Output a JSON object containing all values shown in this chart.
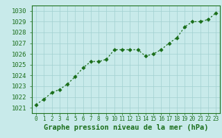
{
  "x": [
    0,
    1,
    2,
    3,
    4,
    5,
    6,
    7,
    8,
    9,
    10,
    11,
    12,
    13,
    14,
    15,
    16,
    17,
    18,
    19,
    20,
    21,
    22,
    23
  ],
  "y": [
    1021.3,
    1021.8,
    1022.4,
    1022.7,
    1023.2,
    1023.9,
    1024.7,
    1025.3,
    1025.3,
    1025.5,
    1026.4,
    1026.4,
    1026.4,
    1026.4,
    1025.8,
    1026.0,
    1026.4,
    1027.0,
    1027.5,
    1028.5,
    1029.0,
    1029.0,
    1029.2,
    1029.8
  ],
  "line_color": "#1a6e1a",
  "marker_color": "#1a6e1a",
  "bg_color": "#c8eaea",
  "grid_color": "#a0d0d0",
  "xlabel": "Graphe pression niveau de la mer (hPa)",
  "ytick_values": [
    1021,
    1022,
    1023,
    1024,
    1025,
    1026,
    1027,
    1028,
    1029,
    1030
  ],
  "xtick_labels": [
    "0",
    "1",
    "2",
    "3",
    "4",
    "5",
    "6",
    "7",
    "8",
    "9",
    "10",
    "11",
    "12",
    "13",
    "14",
    "15",
    "16",
    "17",
    "18",
    "19",
    "20",
    "21",
    "22",
    "23"
  ],
  "ylim": [
    1020.5,
    1030.5
  ],
  "xlim": [
    -0.5,
    23.5
  ],
  "figsize": [
    3.2,
    2.0
  ],
  "dpi": 100
}
